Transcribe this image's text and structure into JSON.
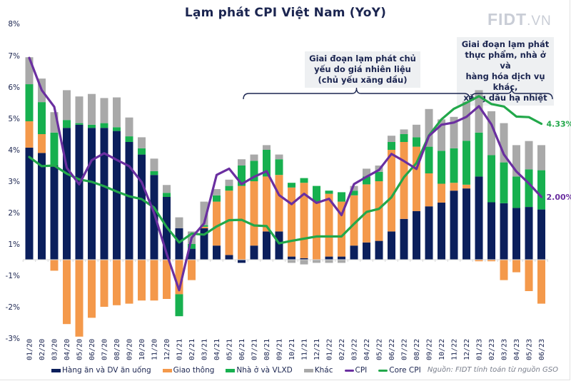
{
  "title": "Lạm phát CPI Việt Nam (YoY)",
  "logo": {
    "main": "FIDT",
    "suffix": ".VN"
  },
  "annotations": [
    {
      "text": [
        "Giai đoạn lạm phát chủ",
        "yếu do giá nhiên liệu",
        "(chủ yếu xăng dầu)"
      ],
      "span": [
        "06/21",
        "12/22"
      ]
    },
    {
      "text": [
        "Giai đoạn lạm phát",
        "thực phẩm, nhà ở và",
        "hàng hóa dịch vụ khác,",
        "xăng dầu hạ nhiệt"
      ],
      "span": [
        "12/22",
        "06/23"
      ]
    }
  ],
  "source": "Nguồn: FIDT tính toán từ nguồn GSO",
  "colors": {
    "food": "#0b1f5c",
    "transport": "#f4994b",
    "housing": "#17b04f",
    "other": "#a9a9a9",
    "cpi": "#6a2fa0",
    "core": "#22a84a",
    "text": "#1b2550"
  },
  "chart_data": {
    "type": "bar",
    "stacked": true,
    "title": "Lạm phát CPI Việt Nam (YoY)",
    "xlabel": "",
    "ylabel": "",
    "ylim": [
      -3,
      8
    ],
    "ytick_labels": [
      "8%",
      "7%",
      "6%",
      "5%",
      "4%",
      "3%",
      "2%",
      "1%",
      "-1%",
      "-2%",
      "-3%"
    ],
    "grid": false,
    "legend_position": "bottom",
    "categories": [
      "01/20",
      "02/20",
      "03/20",
      "04/20",
      "05/20",
      "06/20",
      "07/20",
      "08/20",
      "09/20",
      "10/20",
      "11/20",
      "12/20",
      "01/21",
      "02/21",
      "03/21",
      "04/21",
      "05/21",
      "06/21",
      "07/21",
      "08/21",
      "09/21",
      "10/21",
      "11/21",
      "12/21",
      "01/22",
      "02/22",
      "03/22",
      "04/22",
      "05/22",
      "06/22",
      "07/22",
      "08/22",
      "09/22",
      "10/22",
      "11/22",
      "12/22",
      "01/23",
      "02/23",
      "03/23",
      "04/23",
      "05/23",
      "06/23"
    ],
    "series": [
      {
        "name": "Hàng ăn và DV ăn uống",
        "kind": "bar",
        "values": [
          3.57,
          3.4,
          3.0,
          4.2,
          4.3,
          4.2,
          4.2,
          4.1,
          3.75,
          3.35,
          2.7,
          2.0,
          1.0,
          0.35,
          1.0,
          0.45,
          0.15,
          -0.1,
          0.45,
          0.9,
          0.9,
          0.1,
          0.05,
          0.0,
          0.1,
          0.1,
          0.45,
          0.55,
          0.6,
          0.9,
          1.3,
          1.55,
          1.7,
          1.82,
          2.2,
          2.27,
          2.65,
          1.83,
          1.8,
          1.65,
          1.68,
          1.6
        ]
      },
      {
        "name": "Giao thông",
        "kind": "bar",
        "values": [
          0.84,
          0.6,
          -0.35,
          -2.05,
          -2.45,
          -1.85,
          -1.5,
          -1.45,
          -1.4,
          -1.3,
          -1.3,
          -1.25,
          -1.1,
          -0.65,
          0.05,
          1.4,
          2.05,
          2.35,
          2.05,
          1.75,
          1.8,
          2.2,
          2.4,
          1.85,
          2.0,
          1.75,
          1.6,
          1.85,
          1.9,
          2.6,
          2.45,
          2.05,
          1.05,
          0.6,
          0.25,
          0.12,
          -0.05,
          -0.05,
          -0.65,
          -0.4,
          -1.0,
          -1.4
        ]
      },
      {
        "name": "Nhà ở và VLXD",
        "kind": "bar",
        "values": [
          1.18,
          1.02,
          1.05,
          0.25,
          0.05,
          0.1,
          0.15,
          0.12,
          0.18,
          0.2,
          0.12,
          0.13,
          -0.7,
          0.15,
          0.05,
          0.2,
          0.15,
          0.65,
          0.65,
          0.85,
          0.5,
          0.15,
          0.15,
          0.5,
          0.1,
          0.3,
          0.15,
          0.25,
          0.3,
          0.25,
          0.25,
          0.3,
          0.85,
          1.05,
          1.1,
          1.4,
          1.4,
          1.5,
          1.3,
          1.0,
          1.2,
          1.25
        ]
      },
      {
        "name": "Khác",
        "kind": "bar",
        "values": [
          0.86,
          0.75,
          0.65,
          0.95,
          0.85,
          0.98,
          0.8,
          0.95,
          0.6,
          0.35,
          0.4,
          0.25,
          0.35,
          0.4,
          0.75,
          0.2,
          0.2,
          0.2,
          0.2,
          0.15,
          0.15,
          -0.1,
          -0.15,
          -0.1,
          -0.1,
          -0.1,
          0.15,
          0.25,
          0.2,
          0.2,
          0.15,
          0.4,
          1.2,
          1.0,
          1.0,
          1.25,
          1.35,
          1.4,
          1.25,
          1.0,
          0.9,
          0.8
        ]
      },
      {
        "name": "CPI",
        "kind": "line",
        "values": [
          6.43,
          5.4,
          4.87,
          2.93,
          2.4,
          3.17,
          3.39,
          3.18,
          2.98,
          2.47,
          1.48,
          0.19,
          -0.97,
          0.7,
          1.16,
          2.7,
          2.9,
          2.41,
          2.64,
          2.82,
          2.06,
          1.77,
          2.1,
          1.81,
          1.94,
          1.42,
          2.41,
          2.64,
          2.86,
          3.37,
          3.14,
          2.89,
          3.94,
          4.3,
          4.37,
          4.55,
          4.89,
          4.31,
          3.35,
          2.81,
          2.43,
          2.0
        ]
      },
      {
        "name": "Core CPI",
        "kind": "line",
        "values": [
          3.27,
          2.98,
          3.0,
          2.74,
          2.56,
          2.48,
          2.34,
          2.17,
          2.02,
          1.93,
          1.66,
          1.04,
          0.55,
          0.83,
          0.8,
          1.06,
          1.26,
          1.27,
          1.09,
          1.07,
          0.52,
          0.6,
          0.67,
          0.74,
          0.74,
          0.74,
          1.14,
          1.52,
          1.62,
          1.99,
          2.63,
          3.08,
          3.96,
          4.47,
          4.81,
          5.0,
          5.21,
          4.96,
          4.88,
          4.56,
          4.54,
          4.33
        ]
      }
    ],
    "end_labels": [
      {
        "series": "Core CPI",
        "text": "4.33%"
      },
      {
        "series": "CPI",
        "text": "2.00%"
      }
    ]
  },
  "legend": [
    {
      "label": "Hàng ăn và DV ăn uống",
      "key": "food",
      "type": "bar"
    },
    {
      "label": "Giao thông",
      "key": "transport",
      "type": "bar"
    },
    {
      "label": "Nhà ở và VLXD",
      "key": "housing",
      "type": "bar"
    },
    {
      "label": "Khác",
      "key": "other",
      "type": "bar"
    },
    {
      "label": "CPI",
      "key": "cpi",
      "type": "line"
    },
    {
      "label": "Core CPI",
      "key": "core",
      "type": "line"
    }
  ]
}
